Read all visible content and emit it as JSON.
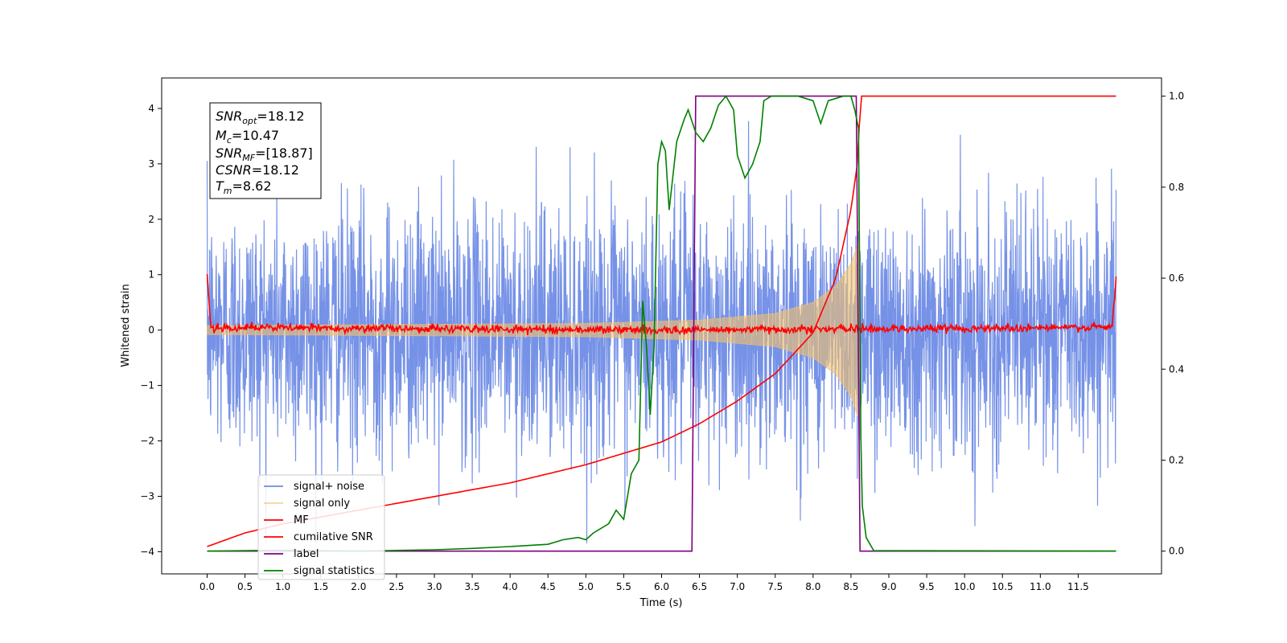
{
  "chart_data": {
    "type": "line",
    "xlabel": "Time (s)",
    "ylabel": "Whitened strain",
    "xlim": [
      -0.6,
      12.6
    ],
    "ylim": [
      -4.4,
      4.55
    ],
    "ylim_right": [
      -0.05,
      1.04
    ],
    "x_ticks": [
      "0.0",
      "0.5",
      "1.0",
      "1.5",
      "2.0",
      "2.5",
      "3.0",
      "3.5",
      "4.0",
      "4.5",
      "5.0",
      "5.5",
      "6.0",
      "6.5",
      "7.0",
      "7.5",
      "8.0",
      "8.5",
      "9.0",
      "9.5",
      "10.0",
      "10.5",
      "11.0",
      "11.5"
    ],
    "y_ticks": [
      "−4",
      "−3",
      "−2",
      "−1",
      "0",
      "1",
      "2",
      "3",
      "4"
    ],
    "y_right_ticks": [
      "0.0",
      "0.2",
      "0.4",
      "0.6",
      "0.8",
      "1.0"
    ],
    "grid": false,
    "legend_position": "lower-left",
    "annotation": {
      "snr_opt": {
        "sym": "SNR",
        "sub": "opt",
        "val": "=18.12"
      },
      "mc": {
        "sym": "M",
        "sub": "c",
        "val": "=10.47"
      },
      "snr_mf": {
        "sym": "SNR",
        "sub": "MF",
        "val": "=[18.87]"
      },
      "csnr": {
        "sym": "CSNR",
        "sub": "",
        "val": "=18.12"
      },
      "tm": {
        "sym": "T",
        "sub": "m",
        "val": "=8.62"
      }
    },
    "series": [
      {
        "name": "signal+ noise",
        "color": "#6f8ce6",
        "axis": "left",
        "description_amplitude": 1.1,
        "x_range": [
          0,
          12.0
        ]
      },
      {
        "name": "signal only",
        "color": "#f5c26b",
        "axis": "left",
        "envelope_points": [
          [
            0,
            0.08
          ],
          [
            5,
            0.12
          ],
          [
            6.5,
            0.18
          ],
          [
            7.5,
            0.3
          ],
          [
            8.0,
            0.5
          ],
          [
            8.3,
            0.8
          ],
          [
            8.5,
            1.2
          ],
          [
            8.6,
            1.6
          ],
          [
            8.62,
            0
          ]
        ]
      },
      {
        "name": "MF",
        "color": "#ff0000",
        "axis": "left",
        "points": [
          [
            0,
            1.0
          ],
          [
            0.05,
            0.05
          ],
          [
            6,
            0.0
          ],
          [
            11.95,
            0.05
          ],
          [
            12.0,
            0.95
          ]
        ]
      },
      {
        "name": "cumilative SNR",
        "color": "#ff0000",
        "axis": "right",
        "points": [
          [
            0,
            0.01
          ],
          [
            0.5,
            0.04
          ],
          [
            1,
            0.06
          ],
          [
            2,
            0.09
          ],
          [
            3,
            0.12
          ],
          [
            4,
            0.15
          ],
          [
            5,
            0.19
          ],
          [
            6,
            0.24
          ],
          [
            6.5,
            0.28
          ],
          [
            7,
            0.33
          ],
          [
            7.5,
            0.39
          ],
          [
            8,
            0.48
          ],
          [
            8.3,
            0.6
          ],
          [
            8.5,
            0.75
          ],
          [
            8.6,
            0.87
          ],
          [
            8.62,
            1.0
          ],
          [
            12.0,
            1.0
          ]
        ]
      },
      {
        "name": "label",
        "color": "#800080",
        "axis": "right",
        "points": [
          [
            0,
            0
          ],
          [
            6.4,
            0
          ],
          [
            6.45,
            1
          ],
          [
            8.57,
            1
          ],
          [
            8.62,
            0
          ],
          [
            12.0,
            0
          ]
        ]
      },
      {
        "name": "signal statistics",
        "color": "#008000",
        "axis": "right",
        "points": [
          [
            0,
            0
          ],
          [
            1,
            0.002
          ],
          [
            2,
            0
          ],
          [
            3,
            0.003
          ],
          [
            3.5,
            0.006
          ],
          [
            4,
            0.01
          ],
          [
            4.5,
            0.015
          ],
          [
            4.7,
            0.025
          ],
          [
            4.9,
            0.03
          ],
          [
            5.0,
            0.025
          ],
          [
            5.1,
            0.04
          ],
          [
            5.3,
            0.06
          ],
          [
            5.4,
            0.09
          ],
          [
            5.5,
            0.07
          ],
          [
            5.6,
            0.17
          ],
          [
            5.7,
            0.2
          ],
          [
            5.75,
            0.55
          ],
          [
            5.8,
            0.45
          ],
          [
            5.85,
            0.3
          ],
          [
            5.9,
            0.45
          ],
          [
            5.95,
            0.85
          ],
          [
            6.0,
            0.9
          ],
          [
            6.05,
            0.88
          ],
          [
            6.1,
            0.75
          ],
          [
            6.2,
            0.9
          ],
          [
            6.3,
            0.95
          ],
          [
            6.35,
            0.97
          ],
          [
            6.45,
            0.92
          ],
          [
            6.55,
            0.9
          ],
          [
            6.65,
            0.93
          ],
          [
            6.75,
            0.98
          ],
          [
            6.85,
            1.0
          ],
          [
            6.95,
            0.97
          ],
          [
            7.0,
            0.87
          ],
          [
            7.1,
            0.82
          ],
          [
            7.2,
            0.85
          ],
          [
            7.3,
            0.9
          ],
          [
            7.35,
            0.99
          ],
          [
            7.45,
            1.0
          ],
          [
            7.6,
            1.0
          ],
          [
            7.8,
            1.0
          ],
          [
            8.0,
            0.99
          ],
          [
            8.1,
            0.94
          ],
          [
            8.2,
            0.99
          ],
          [
            8.4,
            1.0
          ],
          [
            8.5,
            1.0
          ],
          [
            8.55,
            0.97
          ],
          [
            8.6,
            0.93
          ],
          [
            8.63,
            0.25
          ],
          [
            8.65,
            0.1
          ],
          [
            8.7,
            0.03
          ],
          [
            8.8,
            0.001
          ],
          [
            12.0,
            0
          ]
        ]
      }
    ]
  }
}
